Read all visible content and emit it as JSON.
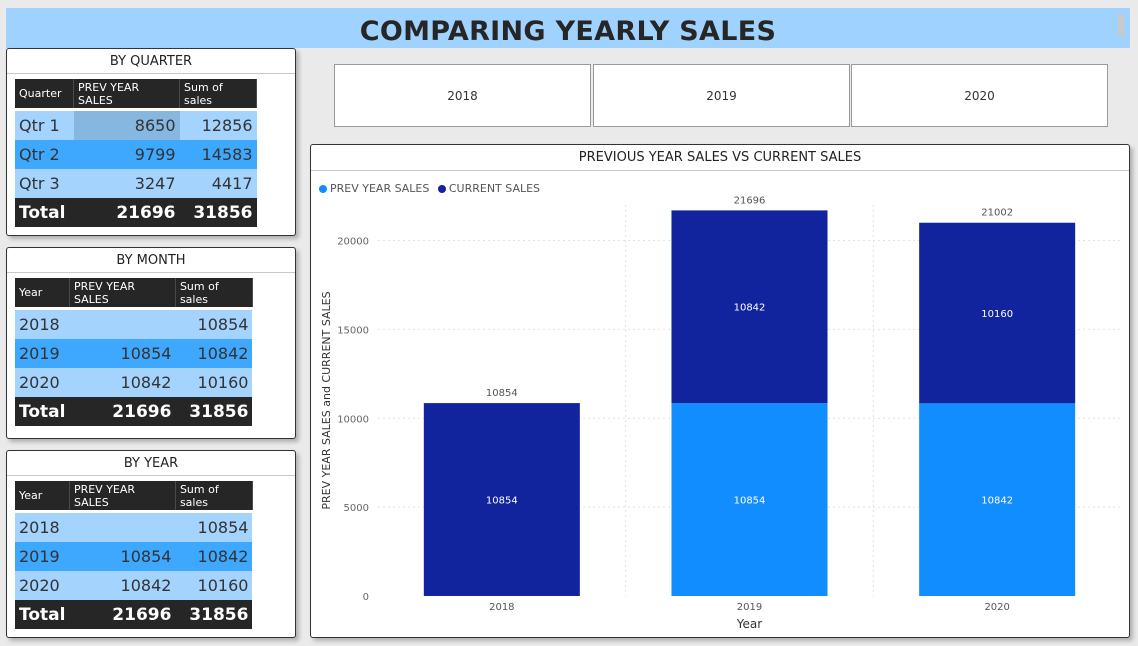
{
  "header": {
    "title": "COMPARING YEARLY SALES"
  },
  "slicers": [
    "2018",
    "2019",
    "2020"
  ],
  "by_quarter": {
    "title": "BY QUARTER",
    "columns": [
      "Quarter",
      "PREV YEAR SALES",
      "Sum of sales"
    ],
    "rows": [
      {
        "label": "Qtr 1",
        "prev": "8650",
        "sum": "12856"
      },
      {
        "label": "Qtr 2",
        "prev": "9799",
        "sum": "14583"
      },
      {
        "label": "Qtr 3",
        "prev": "3247",
        "sum": "4417"
      }
    ],
    "total": {
      "label": "Total",
      "prev": "21696",
      "sum": "31856"
    }
  },
  "by_month": {
    "title": "BY MONTH",
    "columns": [
      "Year",
      "PREV YEAR SALES",
      "Sum of sales"
    ],
    "rows": [
      {
        "label": "2018",
        "prev": "",
        "sum": "10854"
      },
      {
        "label": "2019",
        "prev": "10854",
        "sum": "10842"
      },
      {
        "label": "2020",
        "prev": "10842",
        "sum": "10160"
      }
    ],
    "total": {
      "label": "Total",
      "prev": "21696",
      "sum": "31856"
    }
  },
  "by_year": {
    "title": "BY YEAR",
    "columns": [
      "Year",
      "PREV YEAR SALES",
      "Sum of sales"
    ],
    "rows": [
      {
        "label": "2018",
        "prev": "",
        "sum": "10854"
      },
      {
        "label": "2019",
        "prev": "10854",
        "sum": "10842"
      },
      {
        "label": "2020",
        "prev": "10842",
        "sum": "10160"
      }
    ],
    "total": {
      "label": "Total",
      "prev": "21696",
      "sum": "31856"
    }
  },
  "colors": {
    "title_bar": "#9fd2fe",
    "prev_series": "#118dff",
    "current_series": "#12239e",
    "table_header": "#262626",
    "row_light": "#a4d3fe",
    "row_mid": "#3ea7fe"
  },
  "chart_data": {
    "type": "bar",
    "stacked": true,
    "title": "PREVIOUS YEAR SALES VS CURRENT SALES",
    "xlabel": "Year",
    "ylabel": "PREV YEAR SALES and CURRENT SALES",
    "categories": [
      "2018",
      "2019",
      "2020"
    ],
    "series": [
      {
        "name": "PREV YEAR SALES",
        "values": [
          null,
          10854,
          10842
        ],
        "color": "#118dff"
      },
      {
        "name": "CURRENT SALES",
        "values": [
          10854,
          10842,
          10160
        ],
        "color": "#12239e"
      }
    ],
    "totals": [
      10854,
      21696,
      21002
    ],
    "ylim": [
      0,
      22000
    ],
    "yticks": [
      0,
      5000,
      10000,
      15000,
      20000
    ],
    "grid": true,
    "legend_position": "top-left"
  }
}
